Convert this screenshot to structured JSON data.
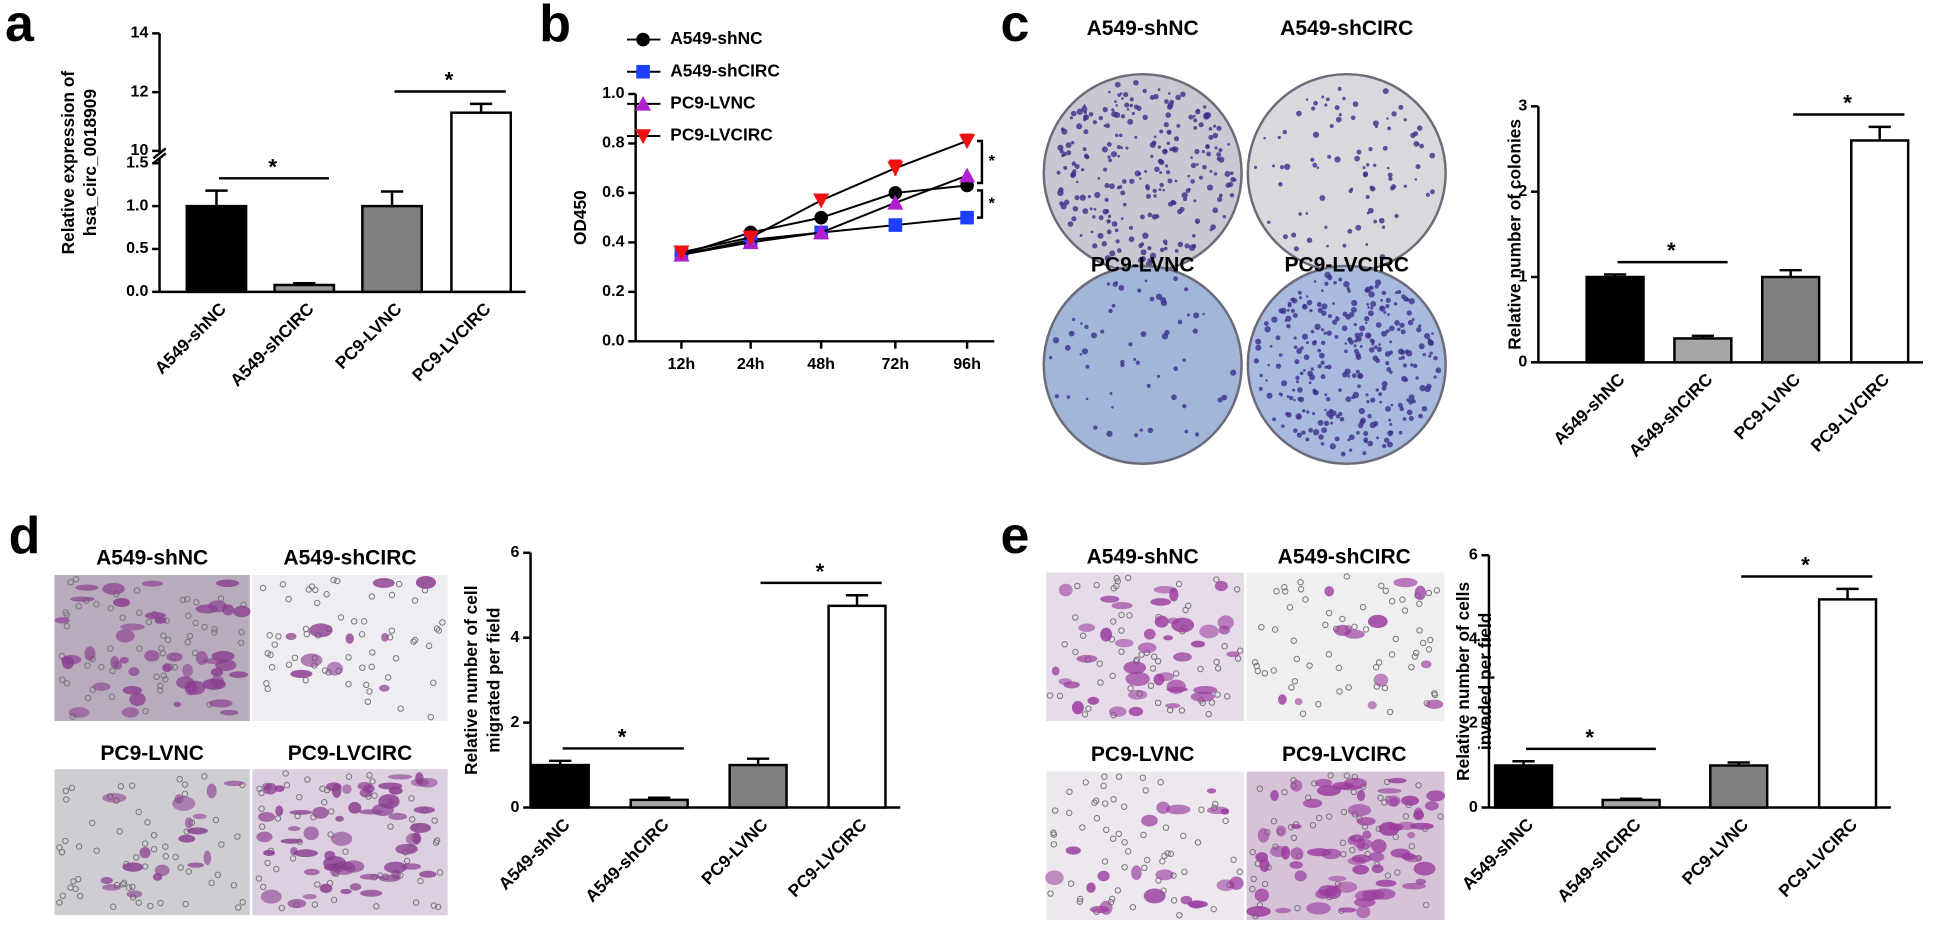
{
  "chart_data": [
    {
      "panel": "a",
      "type": "bar",
      "ylabel": [
        "Relative expression of",
        "hsa_circ_0018909"
      ],
      "categories": [
        "A549-shNC",
        "A549-shCIRC",
        "PC9-LVNC",
        "PC9-LVCIRC"
      ],
      "values": [
        1.0,
        0.08,
        1.0,
        11.3
      ],
      "errors": [
        0.18,
        0.02,
        0.17,
        0.3
      ],
      "colors": [
        "#000000",
        "#999999",
        "#808080",
        "#ffffff"
      ],
      "ylim": [
        0,
        14
      ],
      "ybreak": [
        1.5,
        10
      ],
      "yticks": [
        {
          "value": 0,
          "label": "0.0"
        },
        {
          "value": 0.5,
          "label": "0.5"
        },
        {
          "value": 1,
          "label": "1.0"
        },
        {
          "value": 1.5,
          "label": "1.5"
        },
        10,
        12,
        14
      ],
      "annotations": [
        "*",
        "*"
      ]
    },
    {
      "panel": "b",
      "type": "line",
      "ylabel": "OD450",
      "categories": [
        "12h",
        "24h",
        "48h",
        "72h",
        "96h"
      ],
      "ylim": [
        0,
        1
      ],
      "yticks": [
        {
          "value": 0,
          "label": "0.0"
        },
        {
          "value": 0.2,
          "label": "0.2"
        },
        {
          "value": 0.4,
          "label": "0.4"
        },
        {
          "value": 0.6,
          "label": "0.6"
        },
        {
          "value": 0.8,
          "label": "0.8"
        },
        {
          "value": 1,
          "label": "1.0"
        }
      ],
      "series": [
        {
          "name": "A549-shNC",
          "color": "#000000",
          "marker": "circle",
          "values": [
            0.35,
            0.44,
            0.5,
            0.6,
            0.63
          ]
        },
        {
          "name": "A549-shCIRC",
          "color": "#1f3fff",
          "marker": "square",
          "values": [
            0.35,
            0.41,
            0.44,
            0.47,
            0.5
          ]
        },
        {
          "name": "PC9-LVNC",
          "color": "#b020d0",
          "marker": "triangle",
          "values": [
            0.35,
            0.4,
            0.44,
            0.56,
            0.67
          ]
        },
        {
          "name": "PC9-LVCIRC",
          "color": "#ee1111",
          "marker": "triangle-down",
          "values": [
            0.36,
            0.42,
            0.57,
            0.7,
            0.81
          ],
          "errors": [
            0.01,
            0.01,
            0.015,
            0.03,
            0.025
          ]
        }
      ],
      "annotations": [
        "*",
        "*"
      ]
    },
    {
      "panel": "c",
      "type": "bar",
      "image_labels": [
        "A549-shNC",
        "A549-shCIRC",
        "PC9-LVNC",
        "PC9-LVCIRC"
      ],
      "ylabel": [
        "Relative number of colonies"
      ],
      "categories": [
        "A549-shNC",
        "A549-shCIRC",
        "PC9-LVNC",
        "PC9-LVCIRC"
      ],
      "values": [
        1.0,
        0.28,
        1.0,
        2.6
      ],
      "errors": [
        0.03,
        0.03,
        0.08,
        0.16
      ],
      "colors": [
        "#000000",
        "#a6a6a6",
        "#808080",
        "#ffffff"
      ],
      "ylim": [
        0,
        3
      ],
      "yticks": [
        0,
        1,
        2,
        3
      ],
      "annotations": [
        "*",
        "*"
      ]
    },
    {
      "panel": "d",
      "type": "bar",
      "image_labels": [
        "A549-shNC",
        "A549-shCIRC",
        "PC9-LVNC",
        "PC9-LVCIRC"
      ],
      "ylabel": [
        "Relative number of cell",
        "migrated per field"
      ],
      "categories": [
        "A549-shNC",
        "A549-shCIRC",
        "PC9-LVNC",
        "PC9-LVCIRC"
      ],
      "values": [
        1.0,
        0.18,
        1.0,
        4.75
      ],
      "errors": [
        0.1,
        0.05,
        0.15,
        0.25
      ],
      "colors": [
        "#000000",
        "#a6a6a6",
        "#808080",
        "#ffffff"
      ],
      "ylim": [
        0,
        6
      ],
      "yticks": [
        0,
        2,
        4,
        6
      ],
      "annotations": [
        "*",
        "*"
      ]
    },
    {
      "panel": "e",
      "type": "bar",
      "image_labels": [
        "A549-shNC",
        "A549-shCIRC",
        "PC9-LVNC",
        "PC9-LVCIRC"
      ],
      "ylabel": [
        "Relative number of cells",
        "invaded per field"
      ],
      "categories": [
        "A549-shNC",
        "A549-shCIRC",
        "PC9-LVNC",
        "PC9-LVCIRC"
      ],
      "values": [
        1.0,
        0.18,
        1.0,
        4.95
      ],
      "errors": [
        0.1,
        0.03,
        0.07,
        0.25
      ],
      "colors": [
        "#000000",
        "#a6a6a6",
        "#808080",
        "#ffffff"
      ],
      "ylim": [
        0,
        6
      ],
      "yticks": [
        0,
        2,
        4,
        6
      ],
      "annotations": [
        "*",
        "*"
      ]
    }
  ]
}
